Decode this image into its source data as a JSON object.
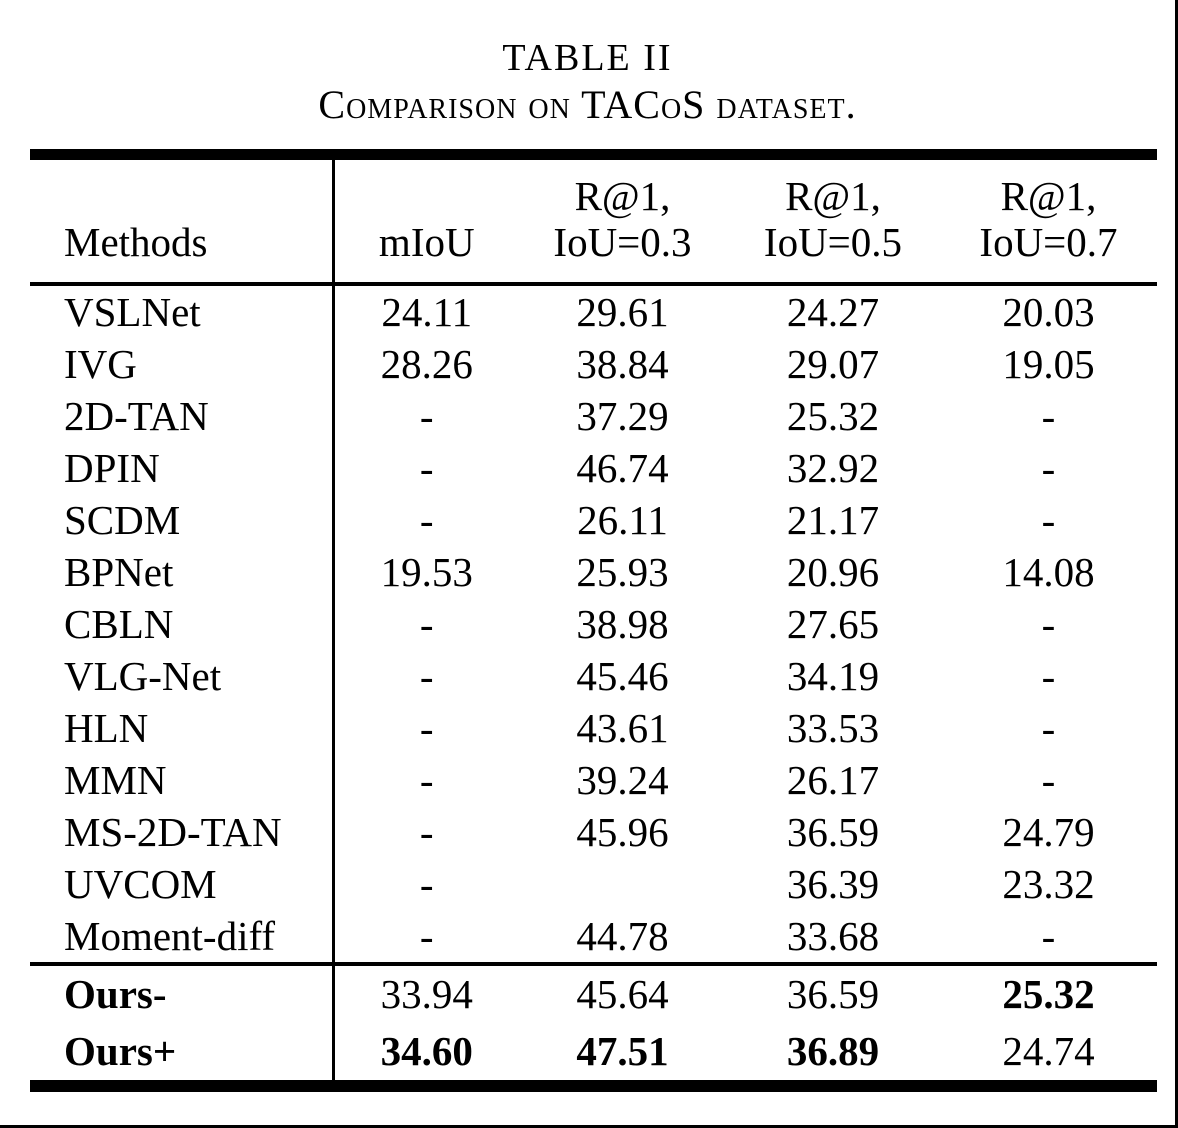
{
  "caption": {
    "label": "TABLE II",
    "title": "Comparison on TACoS dataset."
  },
  "table": {
    "columns": [
      {
        "label": "Methods"
      },
      {
        "label": "mIoU"
      },
      {
        "line1": "R@1,",
        "line2": "IoU=0.3"
      },
      {
        "line1": "R@1,",
        "line2": "IoU=0.5"
      },
      {
        "line1": "R@1,",
        "line2": "IoU=0.7"
      }
    ],
    "rows": [
      {
        "method": "VSLNet",
        "values": [
          "24.11",
          "29.61",
          "24.27",
          "20.03"
        ]
      },
      {
        "method": "IVG",
        "values": [
          "28.26",
          "38.84",
          "29.07",
          "19.05"
        ]
      },
      {
        "method": "2D-TAN",
        "values": [
          "-",
          "37.29",
          "25.32",
          "-"
        ]
      },
      {
        "method": "DPIN",
        "values": [
          "-",
          "46.74",
          "32.92",
          "-"
        ]
      },
      {
        "method": "SCDM",
        "values": [
          "-",
          "26.11",
          "21.17",
          "-"
        ]
      },
      {
        "method": "BPNet",
        "values": [
          "19.53",
          "25.93",
          "20.96",
          "14.08"
        ]
      },
      {
        "method": "CBLN",
        "values": [
          "-",
          "38.98",
          "27.65",
          "-"
        ]
      },
      {
        "method": "VLG-Net",
        "values": [
          "-",
          "45.46",
          "34.19",
          "-"
        ]
      },
      {
        "method": "HLN",
        "values": [
          "-",
          "43.61",
          "33.53",
          "-"
        ]
      },
      {
        "method": "MMN",
        "values": [
          "-",
          "39.24",
          "26.17",
          "-"
        ]
      },
      {
        "method": "MS-2D-TAN",
        "values": [
          "-",
          "45.96",
          "36.59",
          "24.79"
        ]
      },
      {
        "method": "UVCOM",
        "values": [
          "-",
          "",
          "36.39",
          "23.32"
        ]
      },
      {
        "method": "Moment-diff",
        "values": [
          "-",
          "44.78",
          "33.68",
          "-"
        ]
      }
    ],
    "ours_rows": [
      {
        "method": "Ours-",
        "method_bold": true,
        "values": [
          "33.94",
          "45.64",
          "36.59",
          "25.32"
        ],
        "bold": [
          false,
          false,
          false,
          true
        ]
      },
      {
        "method": "Ours+",
        "method_bold": true,
        "values": [
          "34.60",
          "47.51",
          "36.89",
          "24.74"
        ],
        "bold": [
          true,
          true,
          true,
          false
        ]
      }
    ]
  }
}
